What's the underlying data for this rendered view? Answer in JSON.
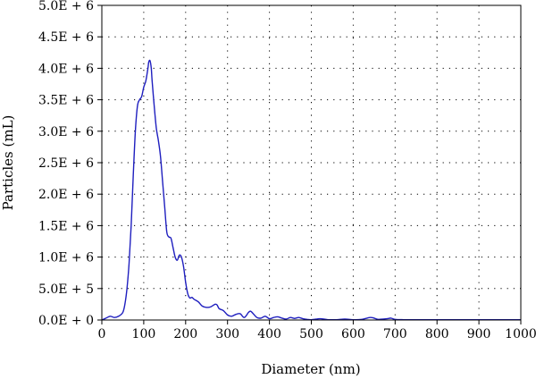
{
  "chart_data": {
    "type": "line",
    "xlabel": "Diameter (nm)",
    "ylabel": "Particles (mL)",
    "xlim": [
      0,
      1000
    ],
    "ylim": [
      0,
      5000000
    ],
    "x_ticks": [
      0,
      100,
      200,
      300,
      400,
      500,
      600,
      700,
      800,
      900,
      1000
    ],
    "x_tick_labels": [
      "0",
      "100",
      "200",
      "300",
      "400",
      "500",
      "600",
      "700",
      "800",
      "900",
      "1000"
    ],
    "y_ticks": [
      0,
      500000,
      1000000,
      1500000,
      2000000,
      2500000,
      3000000,
      3500000,
      4000000,
      4500000,
      5000000
    ],
    "y_tick_labels": [
      "0.0E + 0",
      "5.0E + 5",
      "1.0E + 6",
      "1.5E + 6",
      "2.0E + 6",
      "2.5E + 6",
      "3.0E + 6",
      "3.5E + 6",
      "4.0E + 6",
      "4.5E + 6",
      "5.0E + 6"
    ],
    "grid": true,
    "line_color": "#1f1fbf",
    "series": [
      {
        "x": [
          0,
          10,
          20,
          30,
          40,
          50,
          55,
          60,
          65,
          70,
          75,
          80,
          85,
          90,
          95,
          100,
          105,
          110,
          112,
          115,
          118,
          120,
          125,
          130,
          135,
          140,
          145,
          150,
          155,
          160,
          165,
          170,
          175,
          180,
          185,
          190,
          195,
          200,
          205,
          210,
          215,
          220,
          230,
          240,
          250,
          260,
          270,
          275,
          280,
          290,
          300,
          310,
          320,
          330,
          340,
          350,
          355,
          360,
          370,
          380,
          390,
          400,
          410,
          420,
          430,
          440,
          450,
          460,
          470,
          480,
          490,
          500,
          520,
          530,
          540,
          560,
          580,
          600,
          620,
          640,
          650,
          660,
          680,
          690,
          700,
          720,
          750,
          800,
          900,
          1000
        ],
        "values": [
          0,
          30000,
          60000,
          40000,
          60000,
          120000,
          250000,
          500000,
          900000,
          1500000,
          2300000,
          3000000,
          3400000,
          3500000,
          3550000,
          3700000,
          3800000,
          4000000,
          4100000,
          4120000,
          4000000,
          3800000,
          3400000,
          3050000,
          2850000,
          2600000,
          2200000,
          1800000,
          1400000,
          1320000,
          1300000,
          1150000,
          1000000,
          950000,
          1030000,
          1000000,
          850000,
          600000,
          420000,
          350000,
          360000,
          330000,
          290000,
          220000,
          200000,
          210000,
          250000,
          240000,
          180000,
          150000,
          80000,
          60000,
          90000,
          100000,
          40000,
          120000,
          140000,
          110000,
          40000,
          30000,
          60000,
          20000,
          40000,
          50000,
          30000,
          15000,
          40000,
          25000,
          40000,
          20000,
          10000,
          5000,
          20000,
          15000,
          5000,
          5000,
          15000,
          5000,
          10000,
          40000,
          30000,
          10000,
          20000,
          30000,
          10000,
          5000,
          5000,
          5000,
          5000,
          5000
        ]
      }
    ]
  }
}
